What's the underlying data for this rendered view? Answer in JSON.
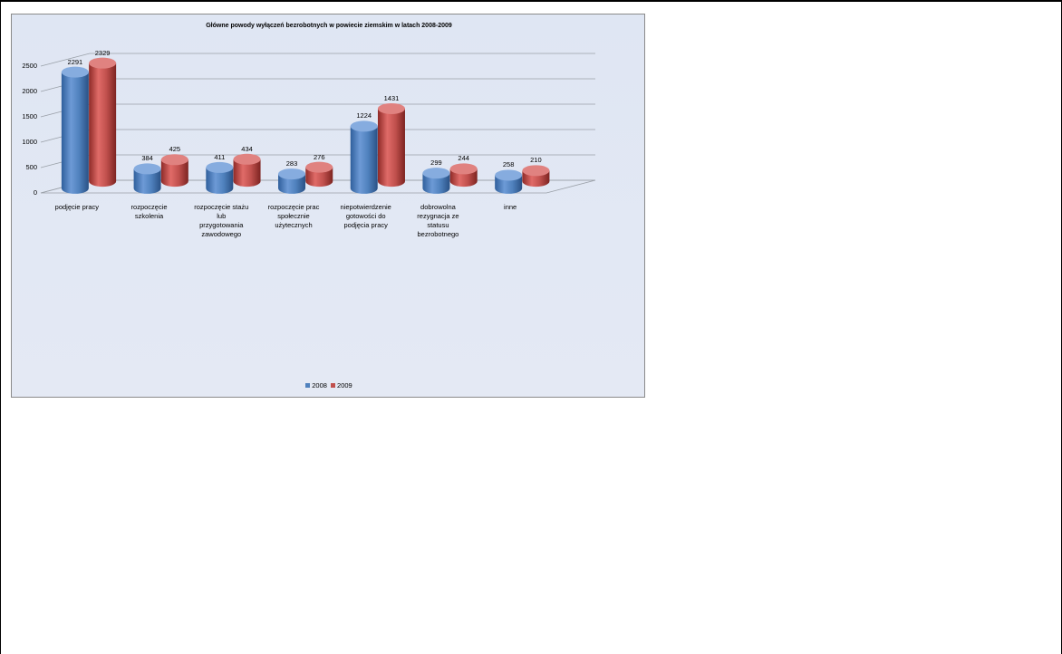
{
  "chart_data": {
    "type": "bar",
    "title": "Główne powody wyłączeń bezrobotnych w powiecie ziemskim w latach 2008-2009",
    "categories": [
      "podjęcie pracy",
      "rozpoczęcie\nszkolenia",
      "rozpoczęcie stażu\nlub\nprzygotowania\nzawodowego",
      "rozpoczęcie prac\nspołecznie\nużytecznych",
      "niepotwierdzenie\ngotowości do\npodjęcia pracy",
      "dobrowolna\nrezygnacja ze\nstatusu\nbezrobotnego",
      "inne"
    ],
    "series": [
      {
        "name": "2008",
        "values": [
          2291,
          384,
          411,
          283,
          1224,
          299,
          258
        ],
        "color": "#4f81bd"
      },
      {
        "name": "2009",
        "values": [
          2329,
          425,
          434,
          276,
          1431,
          244,
          210
        ],
        "color": "#c0504d"
      }
    ],
    "y_ticks": [
      "0",
      "500",
      "1000",
      "1500",
      "2000",
      "2500"
    ],
    "ylim": [
      0,
      2500
    ],
    "grid": true,
    "legend_position": "bottom",
    "style": "3d-cylinder"
  }
}
